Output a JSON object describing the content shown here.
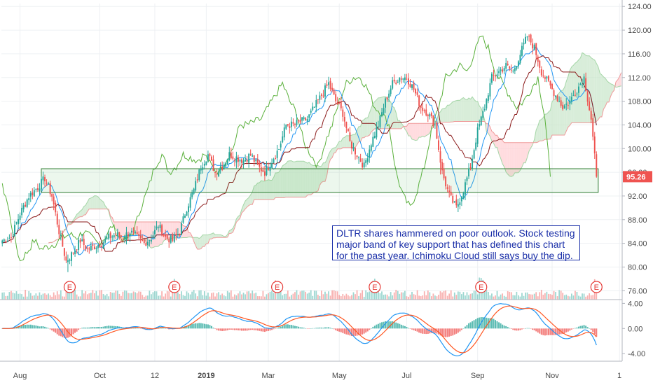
{
  "annotation": "DLTR shares hammered on poor outlook. Stock testing major band of key support that has defined this chart for the past year. Ichimoku Cloud still says buy the dip.",
  "chart_data": {
    "type": "candlestick",
    "price_axis": {
      "ylim": [
        74.5,
        124.5
      ],
      "ticks": [
        "76.00",
        "80.00",
        "84.00",
        "88.00",
        "92.00",
        "96.00",
        "100.00",
        "104.00",
        "108.00",
        "112.00",
        "116.00",
        "120.00",
        "124.00"
      ],
      "last_price_label": "95.26",
      "last_price": 95.26
    },
    "x_axis": {
      "labels": [
        "Aug",
        "Oct",
        "12",
        "2019",
        "Mar",
        "May",
        "Jul",
        "Sep",
        "Nov",
        "1"
      ],
      "label_index": [
        10,
        55,
        86,
        115,
        150,
        190,
        228,
        268,
        310,
        348
      ]
    },
    "close_anchors": [
      [
        0,
        84.5
      ],
      [
        5,
        85
      ],
      [
        10,
        89
      ],
      [
        15,
        92
      ],
      [
        20,
        93.5
      ],
      [
        24,
        95
      ],
      [
        28,
        92
      ],
      [
        32,
        86
      ],
      [
        36,
        81
      ],
      [
        40,
        82.5
      ],
      [
        44,
        84.5
      ],
      [
        48,
        83
      ],
      [
        52,
        83.5
      ],
      [
        56,
        84
      ],
      [
        60,
        85
      ],
      [
        64,
        85.5
      ],
      [
        68,
        85
      ],
      [
        72,
        86
      ],
      [
        76,
        85
      ],
      [
        80,
        84
      ],
      [
        84,
        85
      ],
      [
        88,
        87
      ],
      [
        92,
        85
      ],
      [
        96,
        84.5
      ],
      [
        100,
        86
      ],
      [
        104,
        90
      ],
      [
        108,
        93
      ],
      [
        112,
        97
      ],
      [
        116,
        99
      ],
      [
        120,
        96
      ],
      [
        124,
        97
      ],
      [
        128,
        99
      ],
      [
        132,
        98.5
      ],
      [
        136,
        98
      ],
      [
        140,
        99
      ],
      [
        144,
        97
      ],
      [
        148,
        96
      ],
      [
        152,
        98
      ],
      [
        156,
        100
      ],
      [
        160,
        104
      ],
      [
        164,
        104
      ],
      [
        168,
        104.5
      ],
      [
        172,
        105
      ],
      [
        176,
        107
      ],
      [
        180,
        109
      ],
      [
        184,
        111
      ],
      [
        188,
        108
      ],
      [
        192,
        106
      ],
      [
        196,
        101
      ],
      [
        200,
        99
      ],
      [
        204,
        97
      ],
      [
        208,
        101
      ],
      [
        212,
        104
      ],
      [
        216,
        108
      ],
      [
        220,
        111
      ],
      [
        224,
        112
      ],
      [
        228,
        112
      ],
      [
        232,
        110
      ],
      [
        236,
        107
      ],
      [
        240,
        106
      ],
      [
        244,
        104
      ],
      [
        248,
        96
      ],
      [
        252,
        92
      ],
      [
        256,
        90
      ],
      [
        260,
        93
      ],
      [
        264,
        97
      ],
      [
        268,
        103
      ],
      [
        272,
        107
      ],
      [
        276,
        112
      ],
      [
        280,
        113
      ],
      [
        284,
        114
      ],
      [
        288,
        113
      ],
      [
        292,
        116
      ],
      [
        296,
        119
      ],
      [
        300,
        117
      ],
      [
        304,
        113
      ],
      [
        308,
        111
      ],
      [
        312,
        109
      ],
      [
        316,
        107
      ],
      [
        320,
        108
      ],
      [
        324,
        110
      ],
      [
        328,
        112
      ],
      [
        332,
        105
      ],
      [
        335,
        95.3
      ]
    ],
    "support_band": {
      "price_range": [
        92.6,
        96.6
      ],
      "first_bar": 22,
      "last_bar": 336
    },
    "earnings_markers": {
      "label": "E",
      "bar_index": [
        38,
        97,
        155,
        210,
        270,
        335
      ]
    },
    "macd_axis": {
      "ylim": [
        -5.2,
        4.6
      ],
      "ticks": [
        "4.00",
        "0.00",
        "-4.00"
      ]
    },
    "colors": {
      "up": "#26a69a",
      "down": "#ef5350",
      "tenkan": "#2196f3",
      "kijun": "#8b1a1a",
      "chikou": "#59b03a",
      "span_a": "#a5d6a7",
      "span_b": "#ef9a9a",
      "cloud_bull": "#c8e6c9",
      "cloud_bear": "#ffcdd2",
      "macd": "#2196f3",
      "signal": "#ff5722",
      "band": "#2e7d32",
      "price_tag": "#ef5350"
    }
  }
}
